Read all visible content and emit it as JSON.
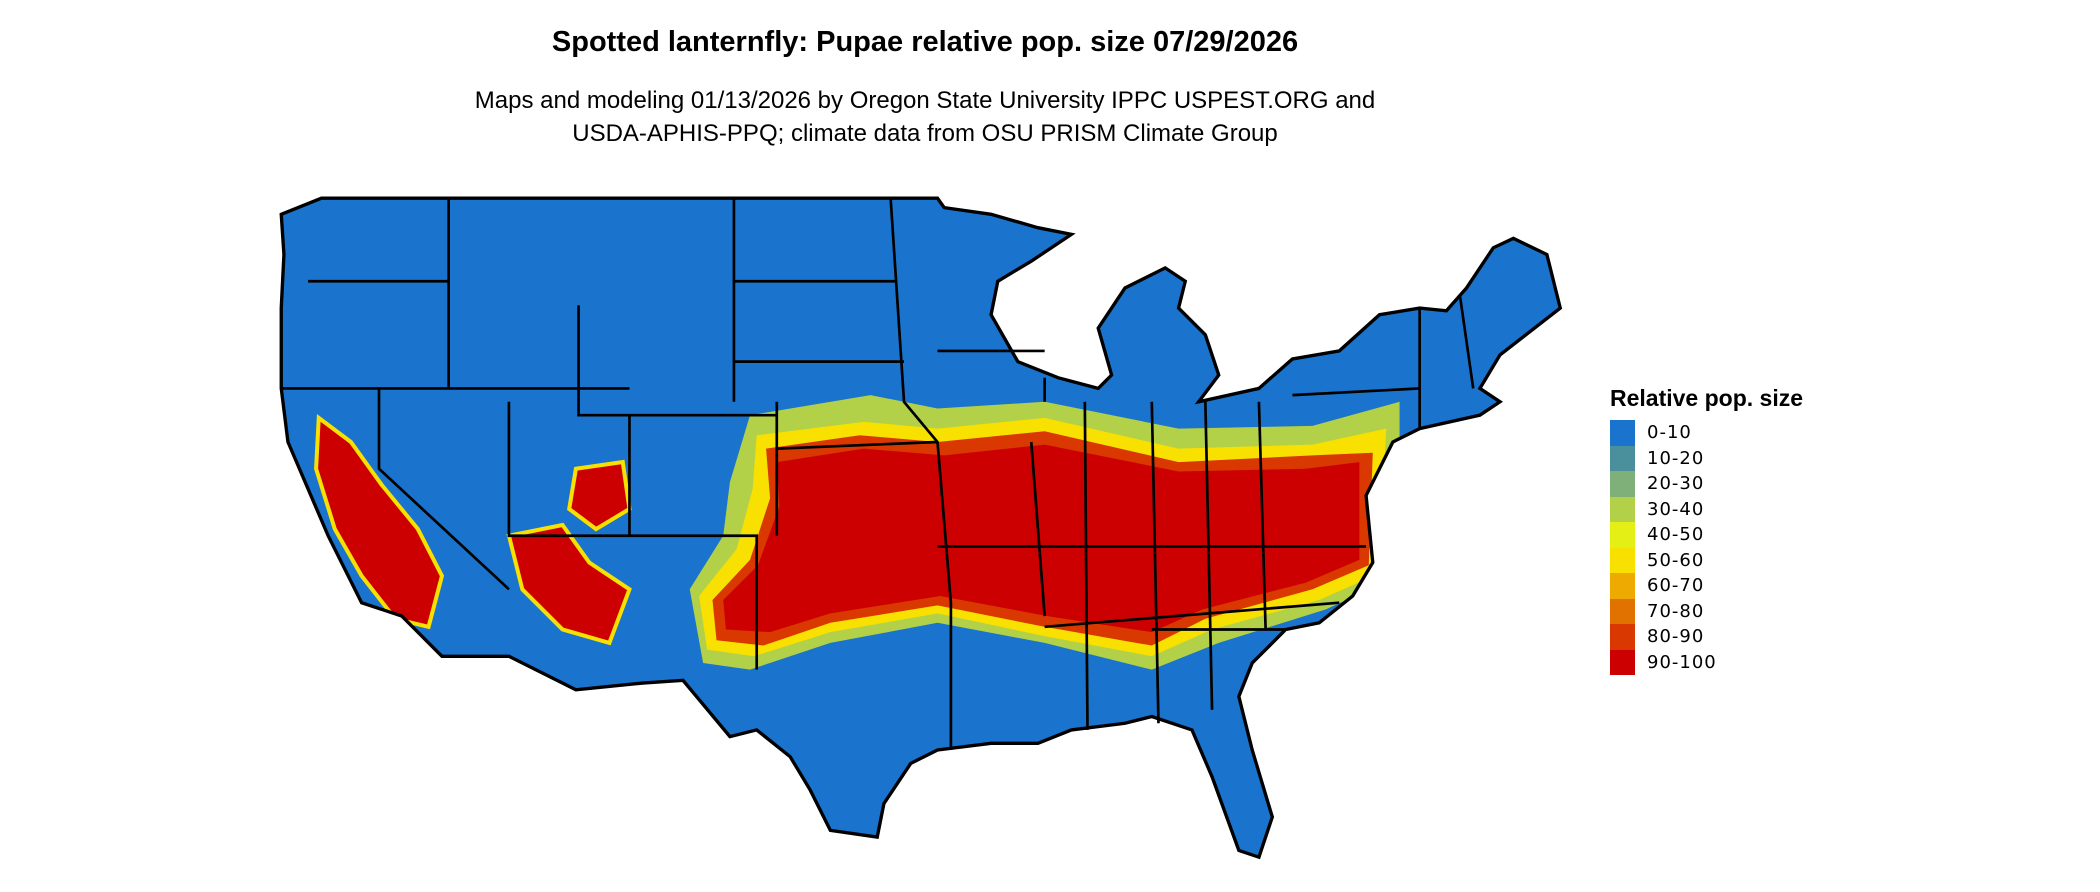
{
  "title": "Spotted lanternfly: Pupae relative pop. size 07/29/2026",
  "subtitle_line1": "Maps and modeling 01/13/2026 by Oregon State University IPPC USPEST.ORG and",
  "subtitle_line2": "USDA-APHIS-PPQ; climate data from OSU PRISM Climate Group",
  "legend": {
    "title": "Relative pop. size",
    "items": [
      {
        "label": "0-10",
        "color": "#1a73cc"
      },
      {
        "label": "10-20",
        "color": "#4a8f9c"
      },
      {
        "label": "20-30",
        "color": "#7fb07a"
      },
      {
        "label": "30-40",
        "color": "#b3d148"
      },
      {
        "label": "40-50",
        "color": "#e4ef16"
      },
      {
        "label": "50-60",
        "color": "#f8e000"
      },
      {
        "label": "60-70",
        "color": "#eeaa00"
      },
      {
        "label": "70-80",
        "color": "#e27200"
      },
      {
        "label": "80-90",
        "color": "#d93800"
      },
      {
        "label": "90-100",
        "color": "#cc0000"
      }
    ]
  },
  "map": {
    "region": "Contiguous United States",
    "background_class_color": "#1a73cc",
    "high_class_color": "#cc0000",
    "border_color": "#000000"
  }
}
